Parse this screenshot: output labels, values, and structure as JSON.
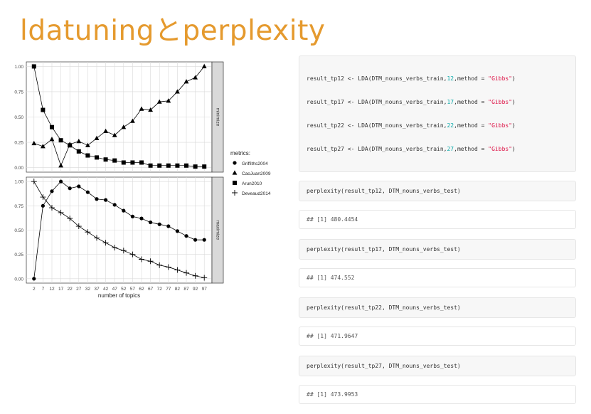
{
  "slide": {
    "title": "ldatuningとperplexity"
  },
  "chart_data": {
    "type": "line",
    "xlabel": "number of topics",
    "x": [
      2,
      7,
      12,
      17,
      22,
      27,
      32,
      37,
      42,
      47,
      52,
      57,
      62,
      67,
      72,
      77,
      82,
      87,
      92,
      97
    ],
    "panels": [
      {
        "strip_label": "minimize",
        "yticks": [
          "1.00",
          "0.75",
          "0.50",
          "0.25",
          "0.00"
        ],
        "ylim": [
          0,
          1
        ],
        "series": [
          {
            "name": "CaoJuan2009",
            "marker": "triangle",
            "values": [
              0.24,
              0.21,
              0.28,
              0.02,
              0.23,
              0.26,
              0.22,
              0.29,
              0.36,
              0.32,
              0.4,
              0.46,
              0.58,
              0.57,
              0.65,
              0.66,
              0.75,
              0.85,
              0.89,
              1.0
            ]
          },
          {
            "name": "Arun2010",
            "marker": "square",
            "values": [
              1.0,
              0.57,
              0.4,
              0.27,
              0.22,
              0.16,
              0.12,
              0.1,
              0.08,
              0.07,
              0.05,
              0.05,
              0.05,
              0.02,
              0.02,
              0.02,
              0.02,
              0.02,
              0.01,
              0.01
            ]
          }
        ]
      },
      {
        "strip_label": "maximize",
        "yticks": [
          "1.00",
          "0.75",
          "0.50",
          "0.25",
          "0.00"
        ],
        "ylim": [
          0,
          1
        ],
        "series": [
          {
            "name": "Griffiths2004",
            "marker": "circle",
            "values": [
              0.0,
              0.75,
              0.9,
              1.0,
              0.93,
              0.95,
              0.89,
              0.82,
              0.81,
              0.76,
              0.7,
              0.64,
              0.62,
              0.58,
              0.56,
              0.54,
              0.49,
              0.44,
              0.4,
              0.4
            ]
          },
          {
            "name": "Deveaud2014",
            "marker": "plus",
            "values": [
              1.0,
              0.84,
              0.73,
              0.68,
              0.62,
              0.54,
              0.48,
              0.42,
              0.37,
              0.32,
              0.29,
              0.25,
              0.2,
              0.18,
              0.14,
              0.12,
              0.09,
              0.06,
              0.03,
              0.01
            ]
          }
        ]
      }
    ],
    "legend": {
      "title": "metrics:",
      "position": "right",
      "items": [
        {
          "name": "Griffiths2004",
          "marker": "circle"
        },
        {
          "name": "CaoJuan2009",
          "marker": "triangle"
        },
        {
          "name": "Arun2010",
          "marker": "square"
        },
        {
          "name": "Deveaud2014",
          "marker": "plus"
        }
      ]
    },
    "grid": true
  },
  "code": {
    "lda_calls": [
      {
        "prefix": "result_tp12 <- LDA(DTM_nouns_verbs_train,",
        "k": "12",
        "mid": ",method = ",
        "str": "\"Gibbs\"",
        "suffix": ")"
      },
      {
        "prefix": "result_tp17 <- LDA(DTM_nouns_verbs_train,",
        "k": "17",
        "mid": ",method = ",
        "str": "\"Gibbs\"",
        "suffix": ")"
      },
      {
        "prefix": "result_tp22 <- LDA(DTM_nouns_verbs_train,",
        "k": "22",
        "mid": ",method = ",
        "str": "\"Gibbs\"",
        "suffix": ")"
      },
      {
        "prefix": "result_tp27 <- LDA(DTM_nouns_verbs_train,",
        "k": "27",
        "mid": ",method = ",
        "str": "\"Gibbs\"",
        "suffix": ")"
      }
    ],
    "perplexity": [
      {
        "call": "perplexity(result_tp12, DTM_nouns_verbs_test)",
        "output": "## [1] 480.4454"
      },
      {
        "call": "perplexity(result_tp17, DTM_nouns_verbs_test)",
        "output": "## [1] 474.552"
      },
      {
        "call": "perplexity(result_tp22, DTM_nouns_verbs_test)",
        "output": "## [1] 471.9647"
      },
      {
        "call": "perplexity(result_tp27, DTM_nouns_verbs_test)",
        "output": "## [1] 473.9953"
      }
    ]
  }
}
